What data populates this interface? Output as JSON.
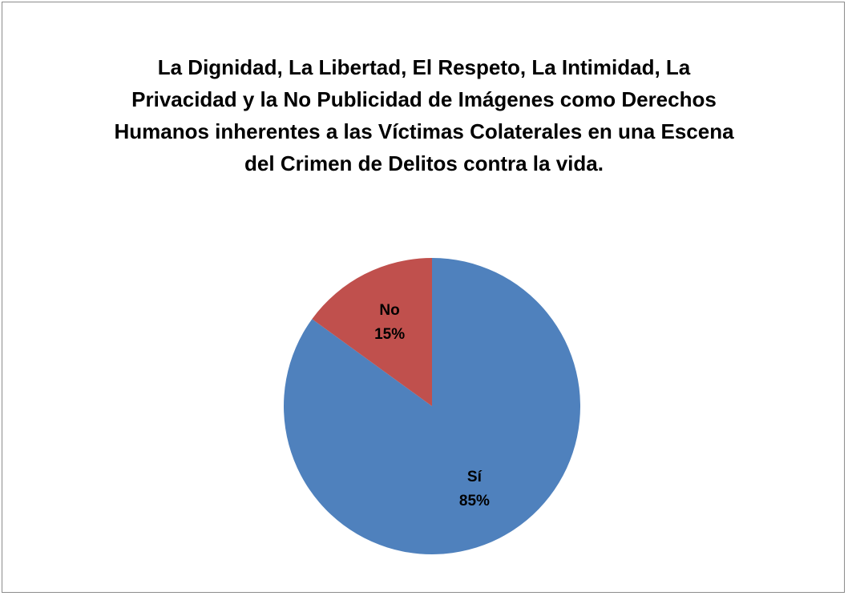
{
  "chart_data": {
    "type": "pie",
    "title": "La Dignidad, La Libertad, El Respeto, La Intimidad, La Privacidad y la No Publicidad de Imágenes como Derechos Humanos inherentes a  las Víctimas Colaterales en una Escena del Crimen de Delitos contra la vida.",
    "categories": [
      "Sí",
      "No"
    ],
    "values": [
      85,
      15
    ],
    "value_labels": [
      "85%",
      "15%"
    ],
    "colors": [
      "#4f81bd",
      "#c0504d"
    ]
  }
}
